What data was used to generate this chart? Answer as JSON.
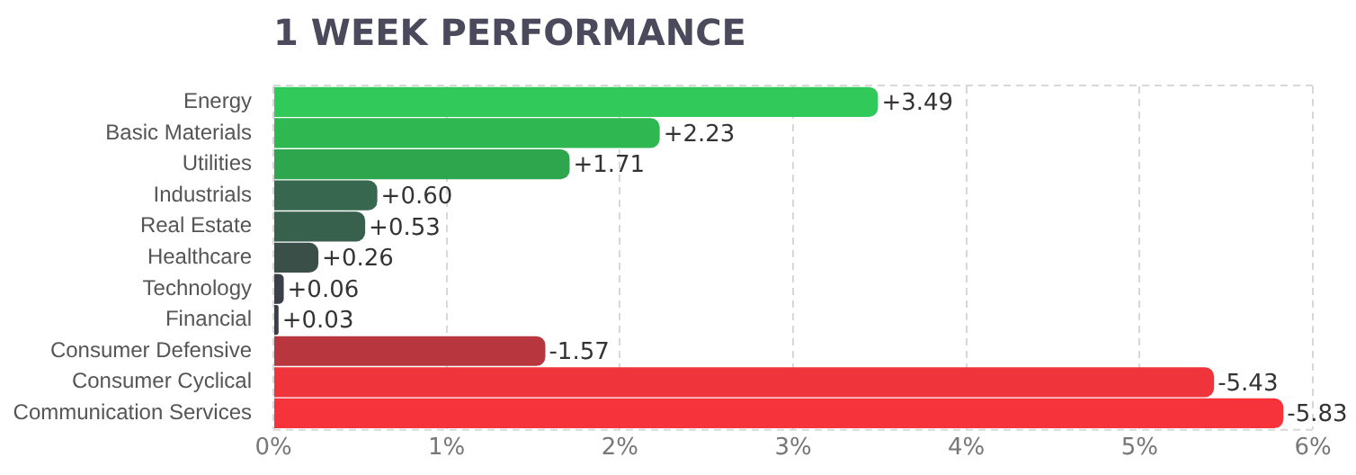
{
  "chart_data": {
    "type": "bar",
    "orientation": "horizontal",
    "title": "1 WEEK PERFORMANCE",
    "categories": [
      "Energy",
      "Basic Materials",
      "Utilities",
      "Industrials",
      "Real Estate",
      "Healthcare",
      "Technology",
      "Financial",
      "Consumer Defensive",
      "Consumer Cyclical",
      "Communication Services"
    ],
    "values": [
      3.49,
      2.23,
      1.71,
      0.6,
      0.53,
      0.26,
      0.06,
      0.03,
      -1.57,
      -5.43,
      -5.83
    ],
    "base": [
      0,
      0,
      0,
      0,
      0,
      0,
      0,
      0,
      1.57,
      5.43,
      5.83
    ],
    "value_labels": [
      "+3.49",
      "+2.23",
      "+1.71",
      "+0.60",
      "+0.53",
      "+0.26",
      "+0.06",
      "+0.03",
      "-1.57",
      "-5.43",
      "-5.83"
    ],
    "colors": [
      "#30c95a",
      "#2fb852",
      "#2ea64d",
      "#37684f",
      "#37604d",
      "#3a4f48",
      "#3b3f48",
      "#3b3d48",
      "#b8373f",
      "#f0343b",
      "#f6333b"
    ],
    "xlim": [
      0,
      6
    ],
    "xticks": [
      {
        "value": 0,
        "label": "0%"
      },
      {
        "value": 1,
        "label": "1%"
      },
      {
        "value": 2,
        "label": "2%"
      },
      {
        "value": 3,
        "label": "3%"
      },
      {
        "value": 4,
        "label": "4%"
      },
      {
        "value": 5,
        "label": "5%"
      },
      {
        "value": 6,
        "label": "6%"
      }
    ],
    "grid": "x",
    "legend": false
  }
}
